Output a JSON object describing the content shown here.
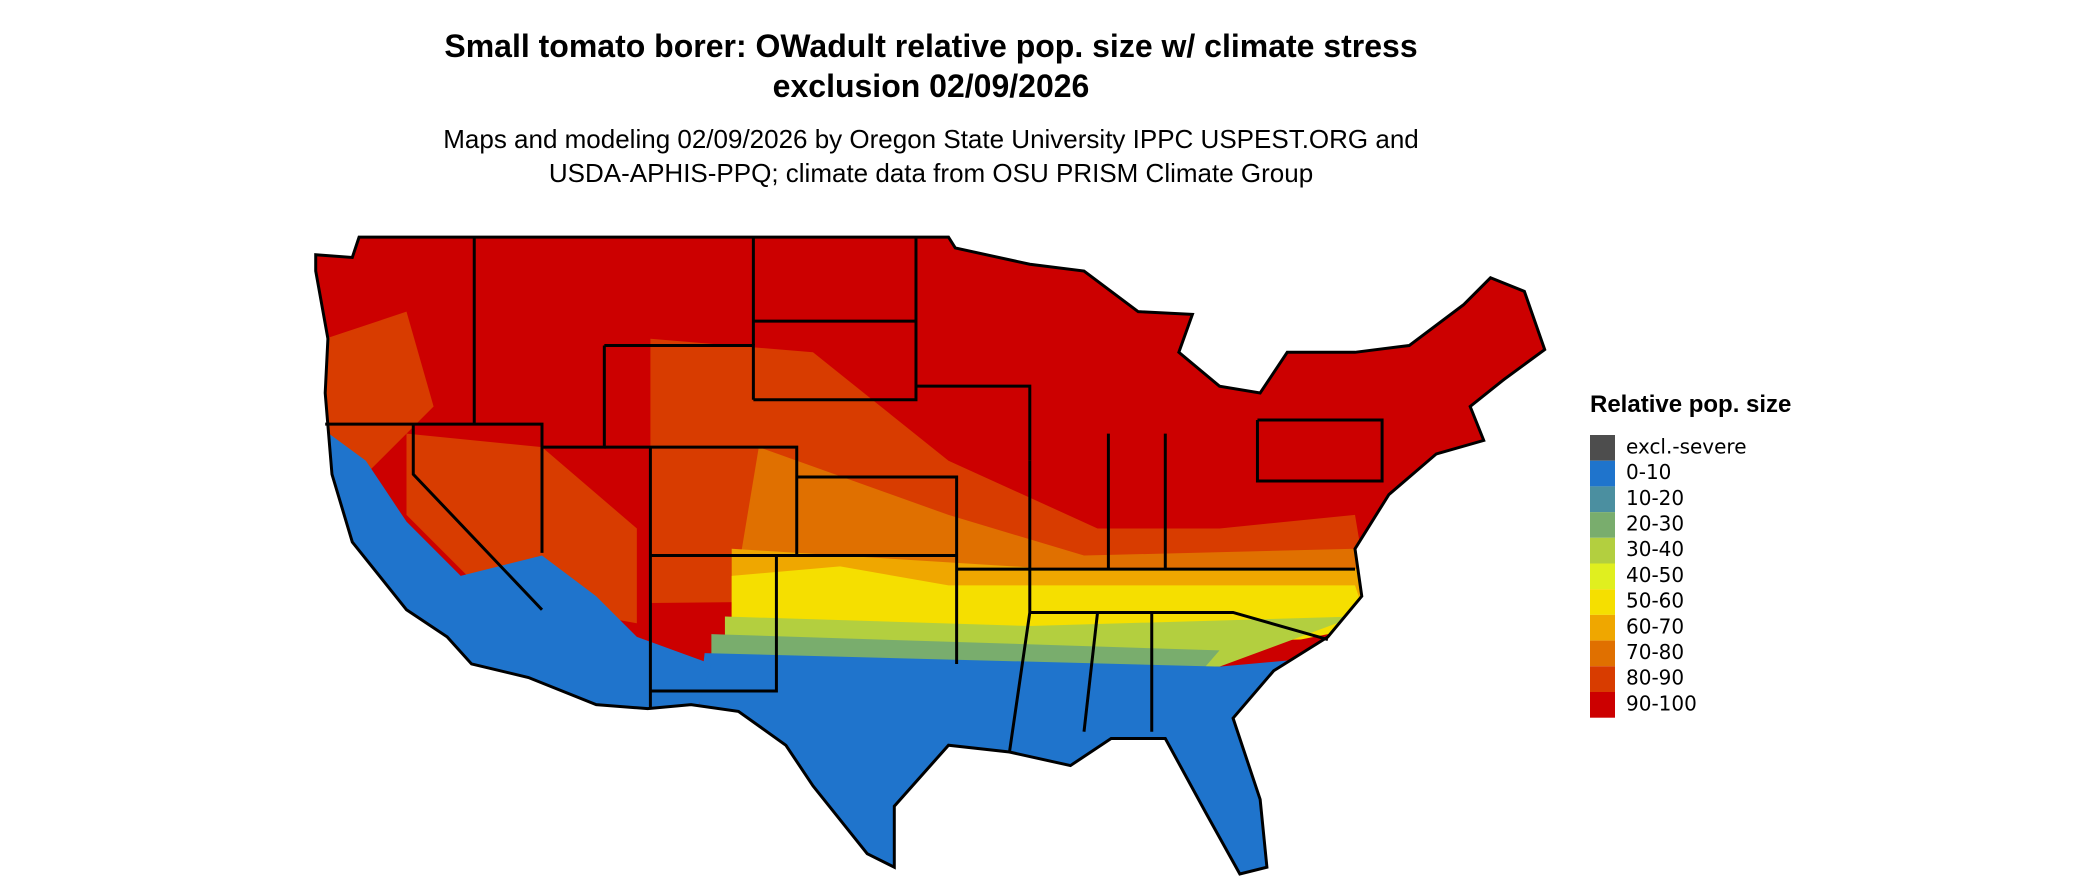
{
  "title": [
    "Small tomato borer: OWadult relative pop. size w/ climate stress",
    "exclusion 02/09/2026"
  ],
  "subtitle": [
    "Maps and modeling 02/09/2026 by Oregon State University IPPC USPEST.ORG and",
    "USDA-APHIS-PPQ; climate data from OSU PRISM Climate Group"
  ],
  "legend": {
    "title": "Relative pop. size",
    "items": [
      {
        "label": "excl.-severe",
        "color": "#4d4d4d"
      },
      {
        "label": "0-10",
        "color": "#1f74cc"
      },
      {
        "label": "10-20",
        "color": "#4b8fa0"
      },
      {
        "label": "20-30",
        "color": "#79ad6d"
      },
      {
        "label": "30-40",
        "color": "#b3cf3f"
      },
      {
        "label": "40-50",
        "color": "#e0ef1f"
      },
      {
        "label": "50-60",
        "color": "#f5df00"
      },
      {
        "label": "60-70",
        "color": "#efa700"
      },
      {
        "label": "70-80",
        "color": "#e07000"
      },
      {
        "label": "80-90",
        "color": "#d83c00"
      },
      {
        "label": "90-100",
        "color": "#cc0000"
      }
    ]
  }
}
